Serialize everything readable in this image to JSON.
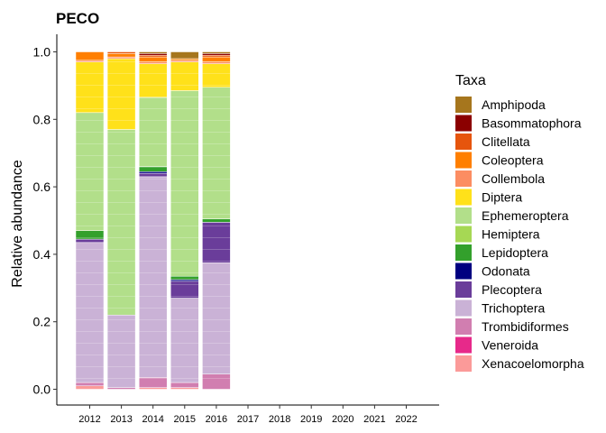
{
  "chart_data": {
    "type": "bar",
    "stacked": true,
    "title": "PECO",
    "xlabel": "",
    "ylabel": "Relative abundance",
    "ylim": [
      0,
      1.05
    ],
    "yticks": [
      "0.0",
      "0.2",
      "0.4",
      "0.6",
      "0.8",
      "1.0"
    ],
    "categories": [
      "2012",
      "2013",
      "2014",
      "2015",
      "2016",
      "2017",
      "2018",
      "2019",
      "2020",
      "2021",
      "2022"
    ],
    "legend_title": "Taxa",
    "legend_position": "right",
    "grid": false,
    "series": [
      {
        "name": "Xenacoelomorpha",
        "color": "#FB9A99",
        "values": [
          0.01,
          0.0,
          0.005,
          0.005,
          0.0,
          0,
          0,
          0,
          0,
          0,
          0
        ]
      },
      {
        "name": "Veneroida",
        "color": "#E7298A",
        "values": [
          0.0,
          0.0,
          0.0,
          0.0,
          0.0,
          0,
          0,
          0,
          0,
          0,
          0
        ]
      },
      {
        "name": "Trombidiformes",
        "color": "#D17EB0",
        "values": [
          0.01,
          0.005,
          0.03,
          0.015,
          0.045,
          0,
          0,
          0,
          0,
          0,
          0
        ]
      },
      {
        "name": "Trichoptera",
        "color": "#CAB2D6",
        "values": [
          0.415,
          0.215,
          0.595,
          0.25,
          0.33,
          0,
          0,
          0,
          0,
          0,
          0
        ]
      },
      {
        "name": "Plecoptera",
        "color": "#6A3D9A",
        "values": [
          0.01,
          0.0,
          0.01,
          0.05,
          0.12,
          0,
          0,
          0,
          0,
          0,
          0
        ]
      },
      {
        "name": "Odonata",
        "color": "#000080",
        "values": [
          0.0,
          0.0,
          0.005,
          0.005,
          0.0,
          0,
          0,
          0,
          0,
          0,
          0
        ]
      },
      {
        "name": "Lepidoptera",
        "color": "#33A02C",
        "values": [
          0.025,
          0.0,
          0.015,
          0.01,
          0.01,
          0,
          0,
          0,
          0,
          0,
          0
        ]
      },
      {
        "name": "Hemiptera",
        "color": "#A6D854",
        "values": [
          0.0,
          0.0,
          0.0,
          0.0,
          0.0,
          0,
          0,
          0,
          0,
          0,
          0
        ]
      },
      {
        "name": "Ephemeroptera",
        "color": "#B2DF8A",
        "values": [
          0.35,
          0.55,
          0.205,
          0.55,
          0.39,
          0,
          0,
          0,
          0,
          0,
          0
        ]
      },
      {
        "name": "Diptera",
        "color": "#FFE11A",
        "values": [
          0.15,
          0.21,
          0.1,
          0.085,
          0.07,
          0,
          0,
          0,
          0,
          0,
          0
        ]
      },
      {
        "name": "Collembola",
        "color": "#FC8D62",
        "values": [
          0.005,
          0.005,
          0.005,
          0.005,
          0.005,
          0,
          0,
          0,
          0,
          0,
          0
        ]
      },
      {
        "name": "Coleoptera",
        "color": "#FF7F00",
        "values": [
          0.025,
          0.01,
          0.015,
          0.005,
          0.015,
          0,
          0,
          0,
          0,
          0,
          0
        ]
      },
      {
        "name": "Clitellata",
        "color": "#E6550D",
        "values": [
          0.0,
          0.005,
          0.005,
          0.0,
          0.005,
          0,
          0,
          0,
          0,
          0,
          0
        ]
      },
      {
        "name": "Basommatophora",
        "color": "#8B0000",
        "values": [
          0.0,
          0.0,
          0.005,
          0.0,
          0.005,
          0,
          0,
          0,
          0,
          0,
          0
        ]
      },
      {
        "name": "Amphipoda",
        "color": "#A6761D",
        "values": [
          0.0,
          0.0,
          0.005,
          0.02,
          0.005,
          0,
          0,
          0,
          0,
          0,
          0
        ]
      }
    ],
    "legend_order": [
      "Amphipoda",
      "Basommatophora",
      "Clitellata",
      "Coleoptera",
      "Collembola",
      "Diptera",
      "Ephemeroptera",
      "Hemiptera",
      "Lepidoptera",
      "Odonata",
      "Plecoptera",
      "Trichoptera",
      "Trombidiformes",
      "Veneroida",
      "Xenacoelomorpha"
    ]
  }
}
